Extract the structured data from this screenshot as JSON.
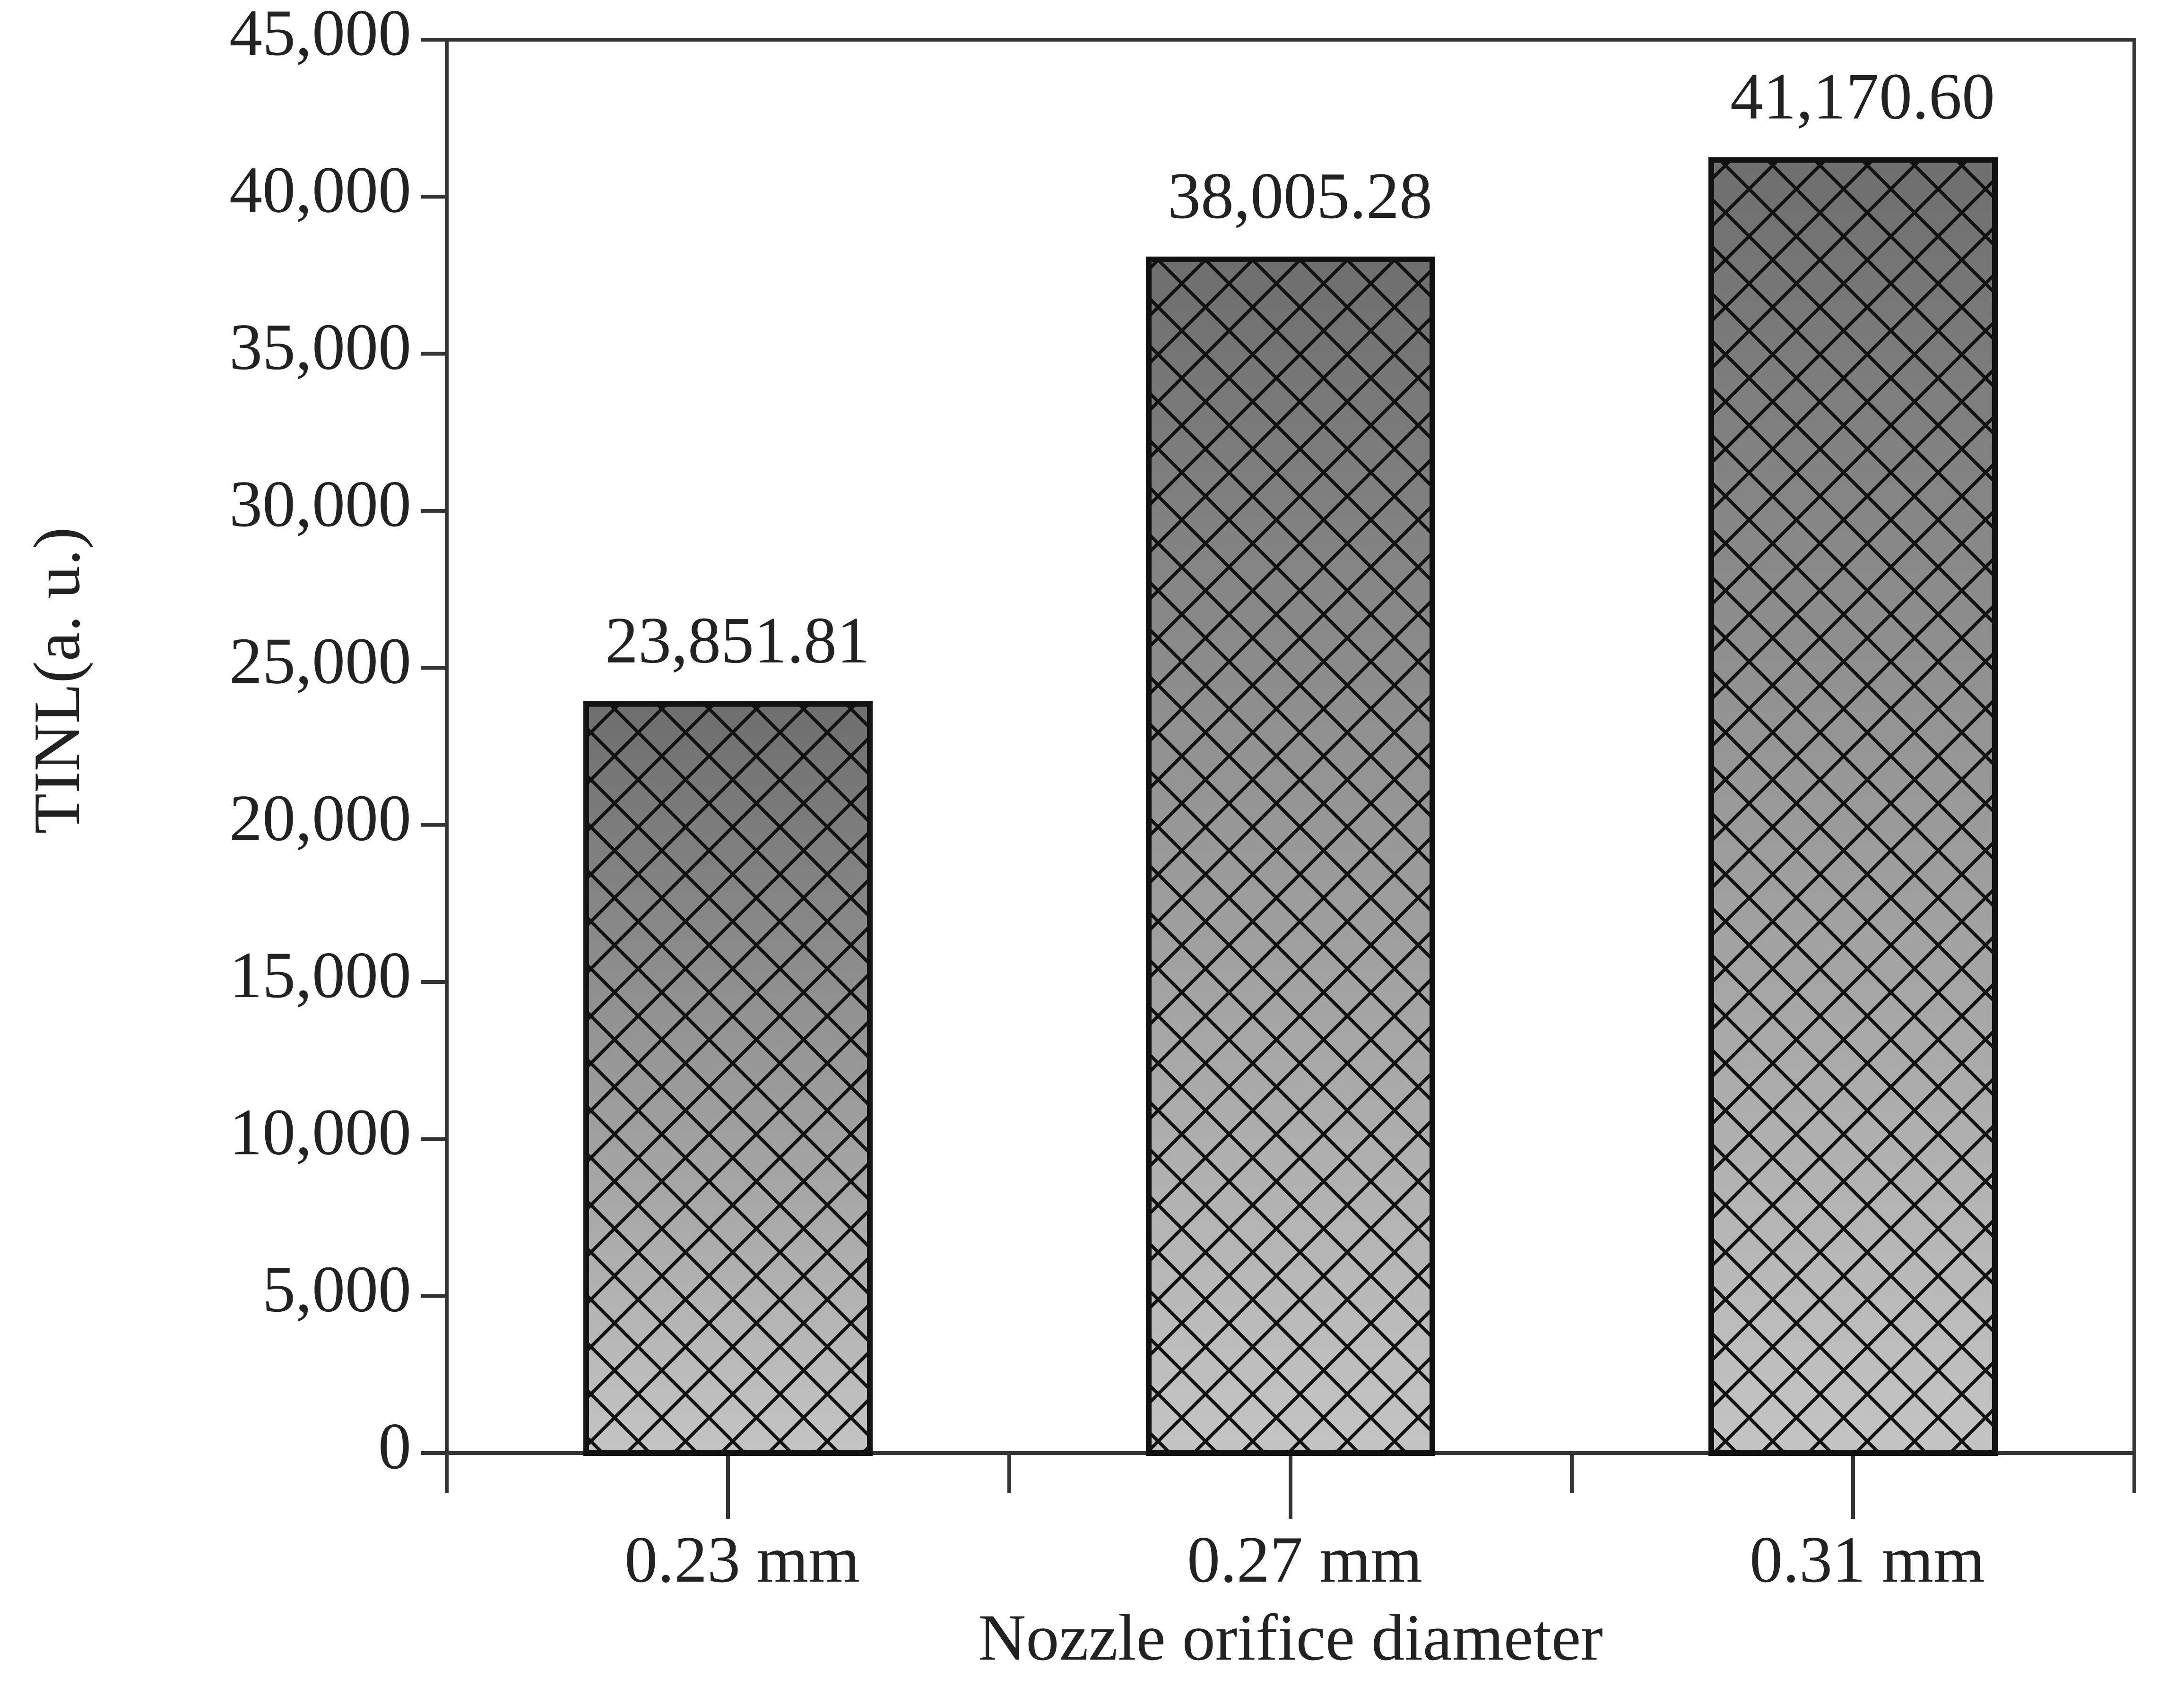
{
  "chart_data": {
    "type": "bar",
    "categories": [
      "0.23 mm",
      "0.27 mm",
      "0.31 mm"
    ],
    "values": [
      23851.81,
      38005.28,
      41170.6
    ],
    "value_labels": [
      "23,851.81",
      "38,005.28",
      "41,170.60"
    ],
    "x_label": "Nozzle orifice diameter",
    "y_label": "TINL(a. u.)",
    "ylim": [
      0,
      45000
    ],
    "yticks": [
      0,
      {
        "value": 5000,
        "label": "5,000"
      },
      {
        "value": 10000,
        "label": "10,000"
      },
      {
        "value": 15000,
        "label": "15,000"
      },
      {
        "value": 20000,
        "label": "20,000"
      },
      {
        "value": 25000,
        "label": "25,000"
      },
      {
        "value": 30000,
        "label": "30,000"
      },
      {
        "value": 35000,
        "label": "35,000"
      },
      {
        "value": 40000,
        "label": "40,000"
      },
      {
        "value": 45000,
        "label": "45,000"
      }
    ],
    "color": "#888888"
  }
}
